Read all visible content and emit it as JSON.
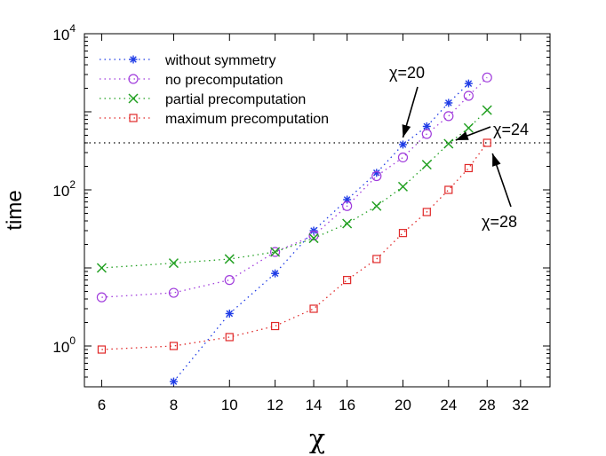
{
  "chart_data": {
    "type": "scatter",
    "xscale": "log",
    "yscale": "log",
    "xlim": [
      5.6,
      36
    ],
    "ylim": [
      0.3,
      10000
    ],
    "xticks": [
      6,
      8,
      10,
      12,
      14,
      16,
      20,
      24,
      28,
      32
    ],
    "xtick_labels": [
      "6",
      "8",
      "10",
      "12",
      "14",
      "16",
      "20",
      "24",
      "28",
      "32"
    ],
    "yticks": [
      {
        "value": 1,
        "base": "10",
        "exp": "0"
      },
      {
        "value": 100,
        "base": "10",
        "exp": "2"
      },
      {
        "value": 10000,
        "base": "10",
        "exp": "4"
      }
    ],
    "xlabel": "χ",
    "ylabel": "time",
    "grid": false,
    "legend_position": "top-left",
    "reference_line": {
      "y": 400,
      "style": "dotted",
      "color": "#000000"
    },
    "series": [
      {
        "name": "without symmetry",
        "marker": "asterisk",
        "color": "#1f3ce6",
        "x": [
          8,
          10,
          12,
          14,
          16,
          18,
          20,
          22,
          24,
          26
        ],
        "y": [
          0.35,
          2.6,
          8.5,
          30,
          75,
          165,
          380,
          650,
          1300,
          2300
        ]
      },
      {
        "name": "no precomputation",
        "marker": "circle",
        "color": "#a03cdc",
        "x": [
          6,
          8,
          10,
          12,
          14,
          16,
          18,
          20,
          22,
          24,
          26,
          28
        ],
        "y": [
          4.2,
          4.8,
          7.0,
          16,
          26,
          62,
          150,
          260,
          520,
          880,
          1600,
          2750
        ]
      },
      {
        "name": "partial precomputation",
        "marker": "cross",
        "color": "#22a022",
        "x": [
          6,
          8,
          10,
          12,
          14,
          16,
          18,
          20,
          22,
          24,
          26,
          28
        ],
        "y": [
          10,
          11.5,
          13,
          16,
          24,
          37,
          62,
          110,
          210,
          390,
          620,
          1050
        ]
      },
      {
        "name": "maximum precomputation",
        "marker": "square",
        "color": "#e02828",
        "x": [
          6,
          8,
          10,
          12,
          14,
          16,
          18,
          20,
          22,
          24,
          26,
          28
        ],
        "y": [
          0.9,
          1.0,
          1.3,
          1.8,
          3.0,
          7.0,
          13,
          28,
          52,
          100,
          190,
          400
        ]
      }
    ],
    "annotations": [
      {
        "text": "χ=20",
        "point": [
          20,
          380
        ]
      },
      {
        "text": "χ=24",
        "point": [
          24,
          390
        ]
      },
      {
        "text": "χ=28",
        "point": [
          28,
          400
        ]
      }
    ]
  }
}
